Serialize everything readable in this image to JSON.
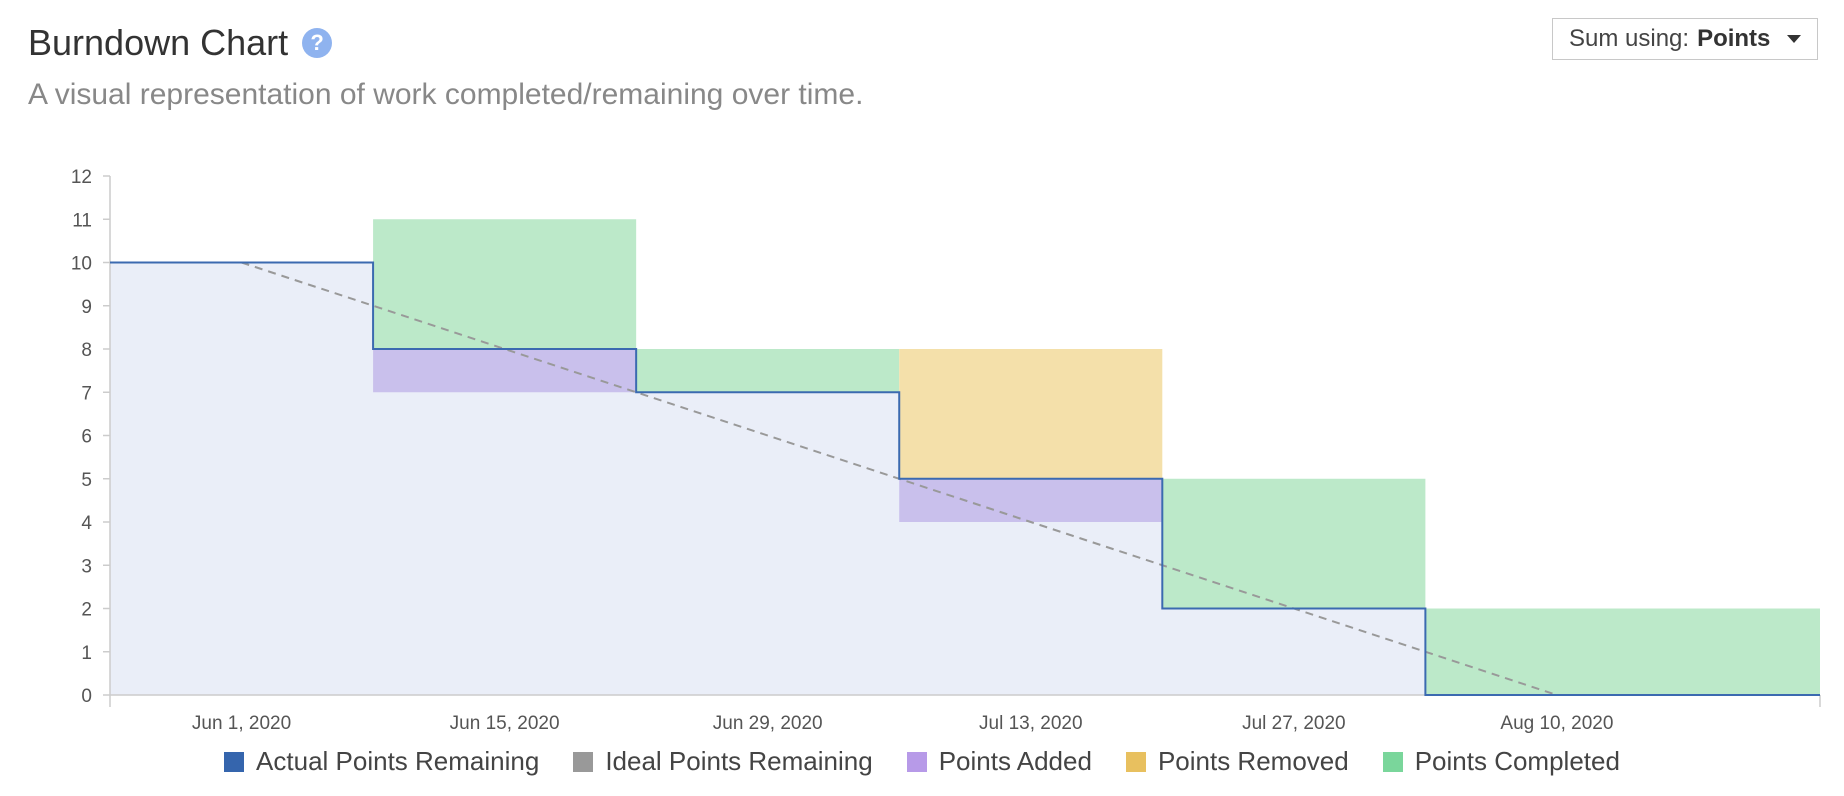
{
  "header": {
    "title": "Burndown Chart",
    "help_glyph": "?",
    "subtitle": "A visual representation of work completed/remaining over time.",
    "sum_using": {
      "label": "Sum using:",
      "value": "Points"
    }
  },
  "icons": {
    "help": "question-mark-circle-icon",
    "dropdown": "caret-down-icon"
  },
  "colors": {
    "actual_line": "#3b6ab0",
    "remaining_fill": "#eaeef8",
    "ideal": "#999999",
    "added": "#c9c0ec",
    "removed": "#f4e0aa",
    "completed": "#bce9c9",
    "legend_actual": "#3565ad",
    "legend_ideal": "#999999",
    "legend_added": "#b79ae8",
    "legend_removed": "#e8c05f",
    "legend_completed": "#7ad69b"
  },
  "chart_data": {
    "type": "area",
    "title": "",
    "xlabel": "",
    "ylabel": "",
    "ylim": [
      0,
      12
    ],
    "yticks": [
      0,
      1,
      2,
      3,
      4,
      5,
      6,
      7,
      8,
      9,
      10,
      11,
      12
    ],
    "xlim": [
      "2020-05-25",
      "2020-08-24"
    ],
    "xticks": [
      {
        "date": "2020-06-01",
        "label": "Jun 1, 2020"
      },
      {
        "date": "2020-06-15",
        "label": "Jun 15, 2020"
      },
      {
        "date": "2020-06-29",
        "label": "Jun 29, 2020"
      },
      {
        "date": "2020-07-13",
        "label": "Jul 13, 2020"
      },
      {
        "date": "2020-07-27",
        "label": "Jul 27, 2020"
      },
      {
        "date": "2020-08-10",
        "label": "Aug 10, 2020"
      }
    ],
    "grid": false,
    "legend_position": "bottom",
    "actual": [
      {
        "start": "2020-05-25",
        "end": "2020-06-08",
        "value": 10
      },
      {
        "start": "2020-06-08",
        "end": "2020-06-22",
        "value": 8
      },
      {
        "start": "2020-06-22",
        "end": "2020-07-06",
        "value": 7
      },
      {
        "start": "2020-07-06",
        "end": "2020-07-20",
        "value": 5
      },
      {
        "start": "2020-07-20",
        "end": "2020-08-03",
        "value": 2
      },
      {
        "start": "2020-08-03",
        "end": "2020-08-24",
        "value": 0
      }
    ],
    "ideal": [
      {
        "x": "2020-06-01",
        "y": 10
      },
      {
        "x": "2020-08-10",
        "y": 0
      }
    ],
    "added": [
      {
        "start": "2020-06-08",
        "end": "2020-06-22",
        "from": 7,
        "to": 8
      },
      {
        "start": "2020-07-06",
        "end": "2020-07-20",
        "from": 4,
        "to": 5
      }
    ],
    "removed": [
      {
        "start": "2020-07-06",
        "end": "2020-07-20",
        "from": 5,
        "to": 8
      }
    ],
    "completed": [
      {
        "start": "2020-06-08",
        "end": "2020-06-22",
        "from": 8,
        "to": 11
      },
      {
        "start": "2020-06-22",
        "end": "2020-07-06",
        "from": 7,
        "to": 8
      },
      {
        "start": "2020-07-20",
        "end": "2020-08-03",
        "from": 2,
        "to": 5
      },
      {
        "start": "2020-08-03",
        "end": "2020-08-24",
        "from": 0,
        "to": 2
      }
    ],
    "legend": [
      {
        "key": "actual",
        "label": "Actual Points Remaining"
      },
      {
        "key": "ideal",
        "label": "Ideal Points Remaining"
      },
      {
        "key": "added",
        "label": "Points Added"
      },
      {
        "key": "removed",
        "label": "Points Removed"
      },
      {
        "key": "completed",
        "label": "Points Completed"
      }
    ]
  }
}
